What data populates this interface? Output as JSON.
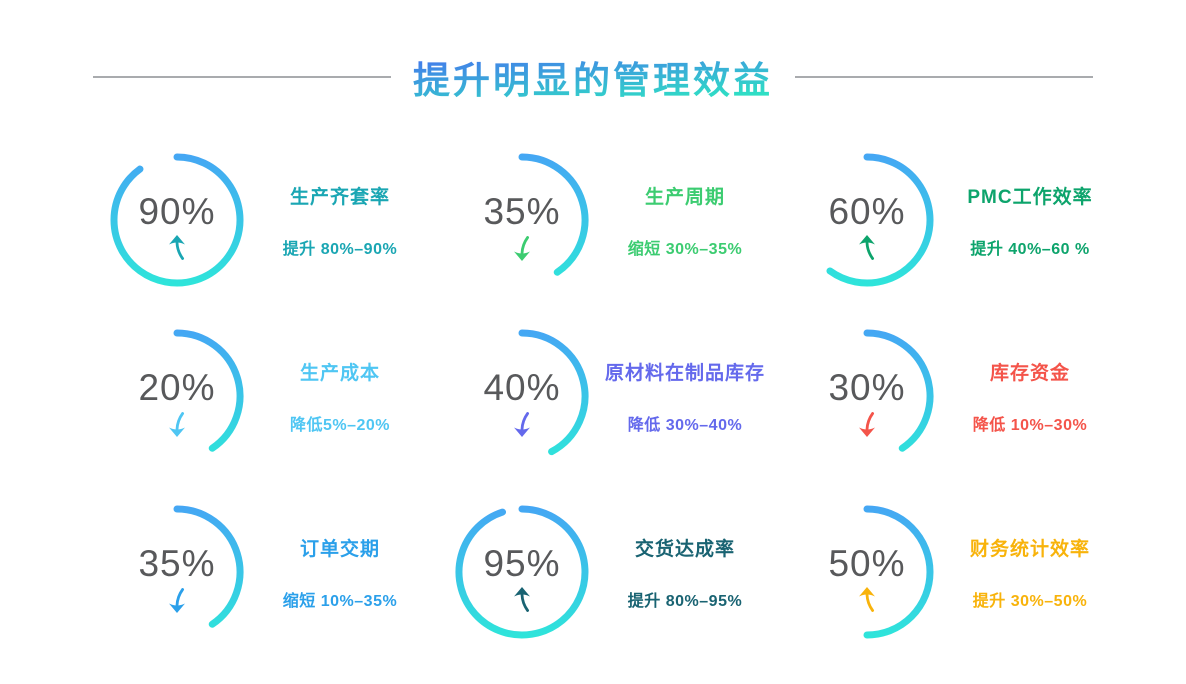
{
  "header": {
    "title": "提升明显的管理效益"
  },
  "palette": {
    "arc_gradient_top": "#45a6f4",
    "arc_gradient_bottom": "#2ee5da",
    "title_gradient_from": "#4478ec",
    "title_gradient_to": "#2ee3c3",
    "percent_text_color": "#58595b",
    "divider_color": "#a9abae"
  },
  "chart_data": {
    "type": "gauge",
    "title": "提升明显的管理效益",
    "layout": "3x3 grid of circular arc gauges, percent value and trend arrow inside ring, label and range note to the right",
    "items": [
      {
        "percent": 90,
        "percent_label": "90%",
        "label": "生产齐套率",
        "note": "提升 80%–90%",
        "direction": "up",
        "color": "#1aa6b3",
        "arc_deg": 324
      },
      {
        "percent": 35,
        "percent_label": "35%",
        "label": "生产周期",
        "note": "缩短 30%–35%",
        "direction": "down",
        "color": "#3ccc71",
        "arc_deg": 146
      },
      {
        "percent": 60,
        "percent_label": "60%",
        "label": "PMC工作效率",
        "note": "提升 40%–60 %",
        "direction": "up",
        "color": "#0da46c",
        "arc_deg": 216
      },
      {
        "percent": 20,
        "percent_label": "20%",
        "label": "生产成本",
        "note": "降低5%–20%",
        "direction": "down",
        "color": "#4fc6f3",
        "arc_deg": 146
      },
      {
        "percent": 40,
        "percent_label": "40%",
        "label": "原材料在制品库存",
        "note": "降低 30%–40%",
        "direction": "down",
        "color": "#6469ec",
        "arc_deg": 152
      },
      {
        "percent": 30,
        "percent_label": "30%",
        "label": "库存资金",
        "note": "降低 10%–30%",
        "direction": "down",
        "color": "#f4544a",
        "arc_deg": 146
      },
      {
        "percent": 35,
        "percent_label": "35%",
        "label": "订单交期",
        "note": "缩短 10%–35%",
        "direction": "down",
        "color": "#2ba0ea",
        "arc_deg": 146
      },
      {
        "percent": 95,
        "percent_label": "95%",
        "label": "交货达成率",
        "note": "提升 80%–95%",
        "direction": "up",
        "color": "#196372",
        "arc_deg": 342
      },
      {
        "percent": 50,
        "percent_label": "50%",
        "label": "财务统计效率",
        "note": "提升 30%–50%",
        "direction": "up",
        "color": "#f8b30b",
        "arc_deg": 180
      }
    ]
  }
}
